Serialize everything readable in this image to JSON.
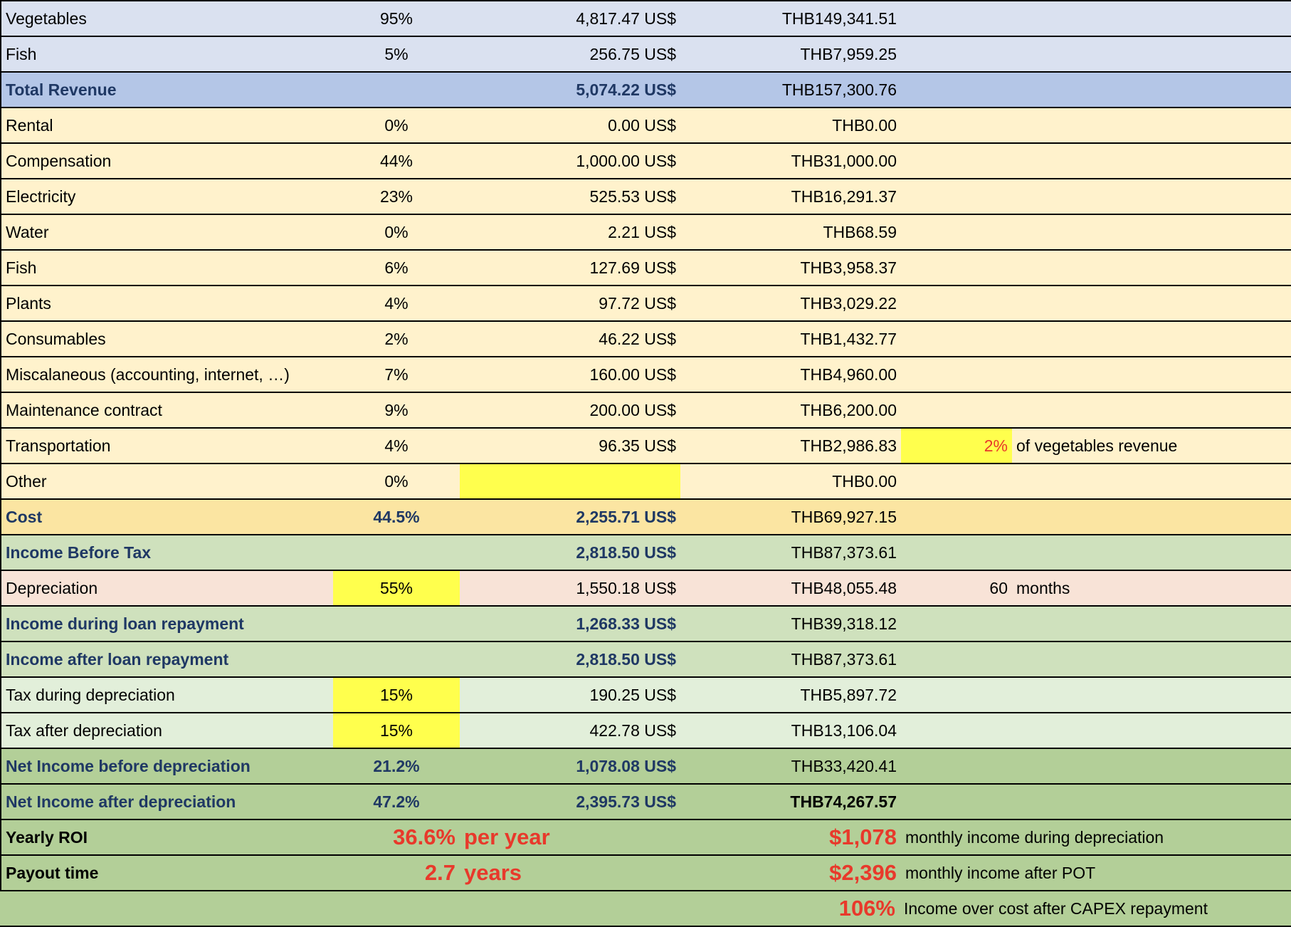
{
  "rows": [
    {
      "label": "Vegetables",
      "pct": "95%",
      "usd": "4,817.47 US$",
      "thb": "THB149,341.51"
    },
    {
      "label": "Fish",
      "pct": "5%",
      "usd": "256.75 US$",
      "thb": "THB7,959.25"
    },
    {
      "label": "Total Revenue",
      "pct": "",
      "usd": "5,074.22 US$",
      "thb": "THB157,300.76"
    },
    {
      "label": "Rental",
      "pct": "0%",
      "usd": "0.00 US$",
      "thb": "THB0.00"
    },
    {
      "label": "Compensation",
      "pct": "44%",
      "usd": "1,000.00 US$",
      "thb": "THB31,000.00"
    },
    {
      "label": "Electricity",
      "pct": "23%",
      "usd": "525.53 US$",
      "thb": "THB16,291.37"
    },
    {
      "label": "Water",
      "pct": "0%",
      "usd": "2.21 US$",
      "thb": "THB68.59"
    },
    {
      "label": "Fish",
      "pct": "6%",
      "usd": "127.69 US$",
      "thb": "THB3,958.37"
    },
    {
      "label": "Plants",
      "pct": "4%",
      "usd": "97.72 US$",
      "thb": "THB3,029.22"
    },
    {
      "label": "Consumables",
      "pct": "2%",
      "usd": "46.22 US$",
      "thb": "THB1,432.77"
    },
    {
      "label": "Miscalaneous (accounting, internet, …)",
      "pct": "7%",
      "usd": "160.00 US$",
      "thb": "THB4,960.00"
    },
    {
      "label": "Maintenance contract",
      "pct": "9%",
      "usd": "200.00 US$",
      "thb": "THB6,200.00"
    },
    {
      "label": "Transportation",
      "pct": "4%",
      "usd": "96.35 US$",
      "thb": "THB2,986.83",
      "extra_value": "2%",
      "extra_text": "of vegetables revenue"
    },
    {
      "label": "Other",
      "pct": "0%",
      "usd": "",
      "thb": "THB0.00"
    },
    {
      "label": "Cost",
      "pct": "44.5%",
      "usd": "2,255.71 US$",
      "thb": "THB69,927.15"
    },
    {
      "label": "Income Before Tax",
      "pct": "",
      "usd": "2,818.50 US$",
      "thb": "THB87,373.61"
    },
    {
      "label": "Depreciation",
      "pct": "55%",
      "usd": "1,550.18 US$",
      "thb": "THB48,055.48",
      "extra_value": "60",
      "extra_text": "months"
    },
    {
      "label": "Income during loan repayment",
      "pct": "",
      "usd": "1,268.33 US$",
      "thb": "THB39,318.12"
    },
    {
      "label": "Income after loan repayment",
      "pct": "",
      "usd": "2,818.50 US$",
      "thb": "THB87,373.61"
    },
    {
      "label": "Tax during depreciation",
      "pct": "15%",
      "usd": "190.25 US$",
      "thb": "THB5,897.72"
    },
    {
      "label": "Tax after depreciation",
      "pct": "15%",
      "usd": "422.78 US$",
      "thb": "THB13,106.04"
    },
    {
      "label": "Net Income before depreciation",
      "pct": "21.2%",
      "usd": "1,078.08 US$",
      "thb": "THB33,420.41"
    },
    {
      "label": "Net Income after depreciation",
      "pct": "47.2%",
      "usd": "2,395.73 US$",
      "thb": "THB74,267.57"
    }
  ],
  "summary": {
    "roi_label": "Yearly ROI",
    "roi_value": "36.6%",
    "roi_unit": "per year",
    "monthly_dep_value": "$1,078",
    "monthly_dep_text": "monthly income during depreciation",
    "payout_label": "Payout time",
    "payout_value": "2.7",
    "payout_unit": "years",
    "monthly_pot_value": "$2,396",
    "monthly_pot_text": "monthly income after POT",
    "ioc_value": "106%",
    "ioc_text": "Income over cost after CAPEX repayment"
  },
  "colors": {
    "accent_red": "#e8392b",
    "input_yellow": "#ffff4d",
    "header_blue": "#1f3864"
  }
}
